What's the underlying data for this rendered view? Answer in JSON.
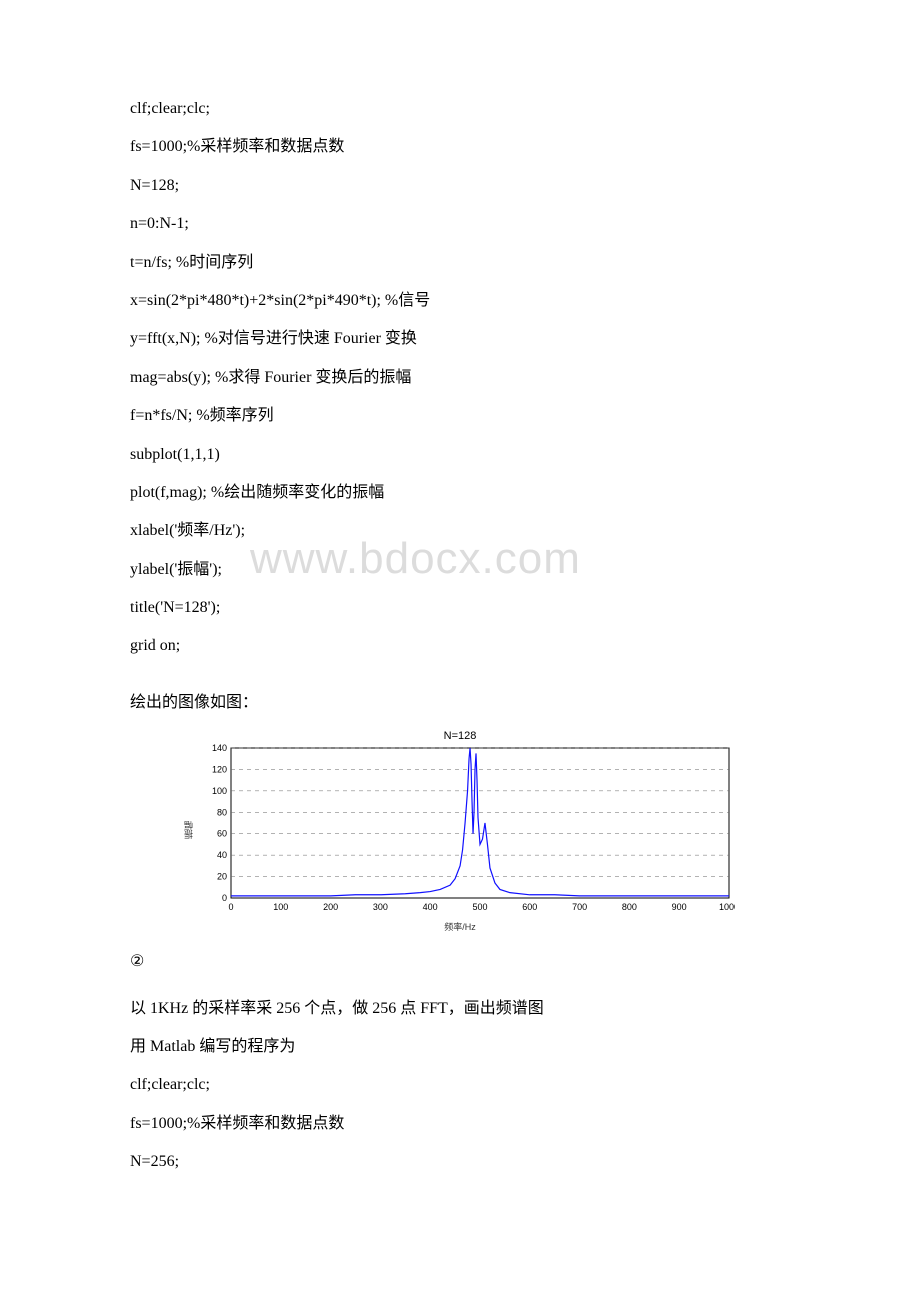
{
  "watermark": "www.bdocx.com",
  "code_block_1": [
    " clf;clear;clc;",
    "fs=1000;%采样频率和数据点数",
    "N=128;",
    "n=0:N-1;",
    "t=n/fs; %时间序列",
    "x=sin(2*pi*480*t)+2*sin(2*pi*490*t); %信号",
    "y=fft(x,N); %对信号进行快速 Fourier 变换",
    "mag=abs(y); %求得 Fourier 变换后的振幅",
    "f=n*fs/N; %频率序列",
    "subplot(1,1,1)",
    "plot(f,mag); %绘出随频率变化的振幅",
    "xlabel('频率/Hz');",
    "ylabel('振幅');",
    "title('N=128');",
    "grid on;"
  ],
  "caption_1": " 绘出的图像如图：",
  "chart": {
    "title": "N=128",
    "xlabel": "频率/Hz",
    "ylabel": "振幅",
    "xlim": [
      0,
      1000
    ],
    "ylim": [
      0,
      140
    ],
    "xticks": [
      0,
      100,
      200,
      300,
      400,
      500,
      600,
      700,
      800,
      900,
      1000
    ],
    "yticks": [
      0,
      20,
      40,
      60,
      80,
      100,
      120,
      140
    ],
    "line_color": "#1010ff",
    "grid_color": "#666666",
    "axis_color": "#000000",
    "background": "#ffffff",
    "tick_fontsize": 9,
    "line_width": 1.2,
    "points": [
      [
        0,
        2
      ],
      [
        30,
        2
      ],
      [
        60,
        2
      ],
      [
        100,
        2
      ],
      [
        150,
        2
      ],
      [
        200,
        2
      ],
      [
        250,
        3
      ],
      [
        300,
        3
      ],
      [
        350,
        4
      ],
      [
        380,
        5
      ],
      [
        400,
        6
      ],
      [
        420,
        8
      ],
      [
        440,
        12
      ],
      [
        450,
        18
      ],
      [
        460,
        30
      ],
      [
        465,
        45
      ],
      [
        470,
        70
      ],
      [
        475,
        100
      ],
      [
        478,
        130
      ],
      [
        480,
        140
      ],
      [
        482,
        125
      ],
      [
        484,
        90
      ],
      [
        486,
        60
      ],
      [
        488,
        80
      ],
      [
        490,
        120
      ],
      [
        492,
        135
      ],
      [
        494,
        110
      ],
      [
        496,
        75
      ],
      [
        500,
        50
      ],
      [
        505,
        55
      ],
      [
        510,
        70
      ],
      [
        515,
        50
      ],
      [
        520,
        28
      ],
      [
        530,
        14
      ],
      [
        540,
        8
      ],
      [
        560,
        5
      ],
      [
        600,
        3
      ],
      [
        650,
        3
      ],
      [
        700,
        2
      ],
      [
        800,
        2
      ],
      [
        900,
        2
      ],
      [
        1000,
        2
      ]
    ]
  },
  "section_2_num": "②",
  "text_block_2": [
    " 以 1KHz 的采样率采 256 个点，做 256 点 FFT，画出频谱图",
    " 用 Matlab 编写的程序为",
    " clf;clear;clc;",
    "fs=1000;%采样频率和数据点数",
    "N=256;"
  ]
}
